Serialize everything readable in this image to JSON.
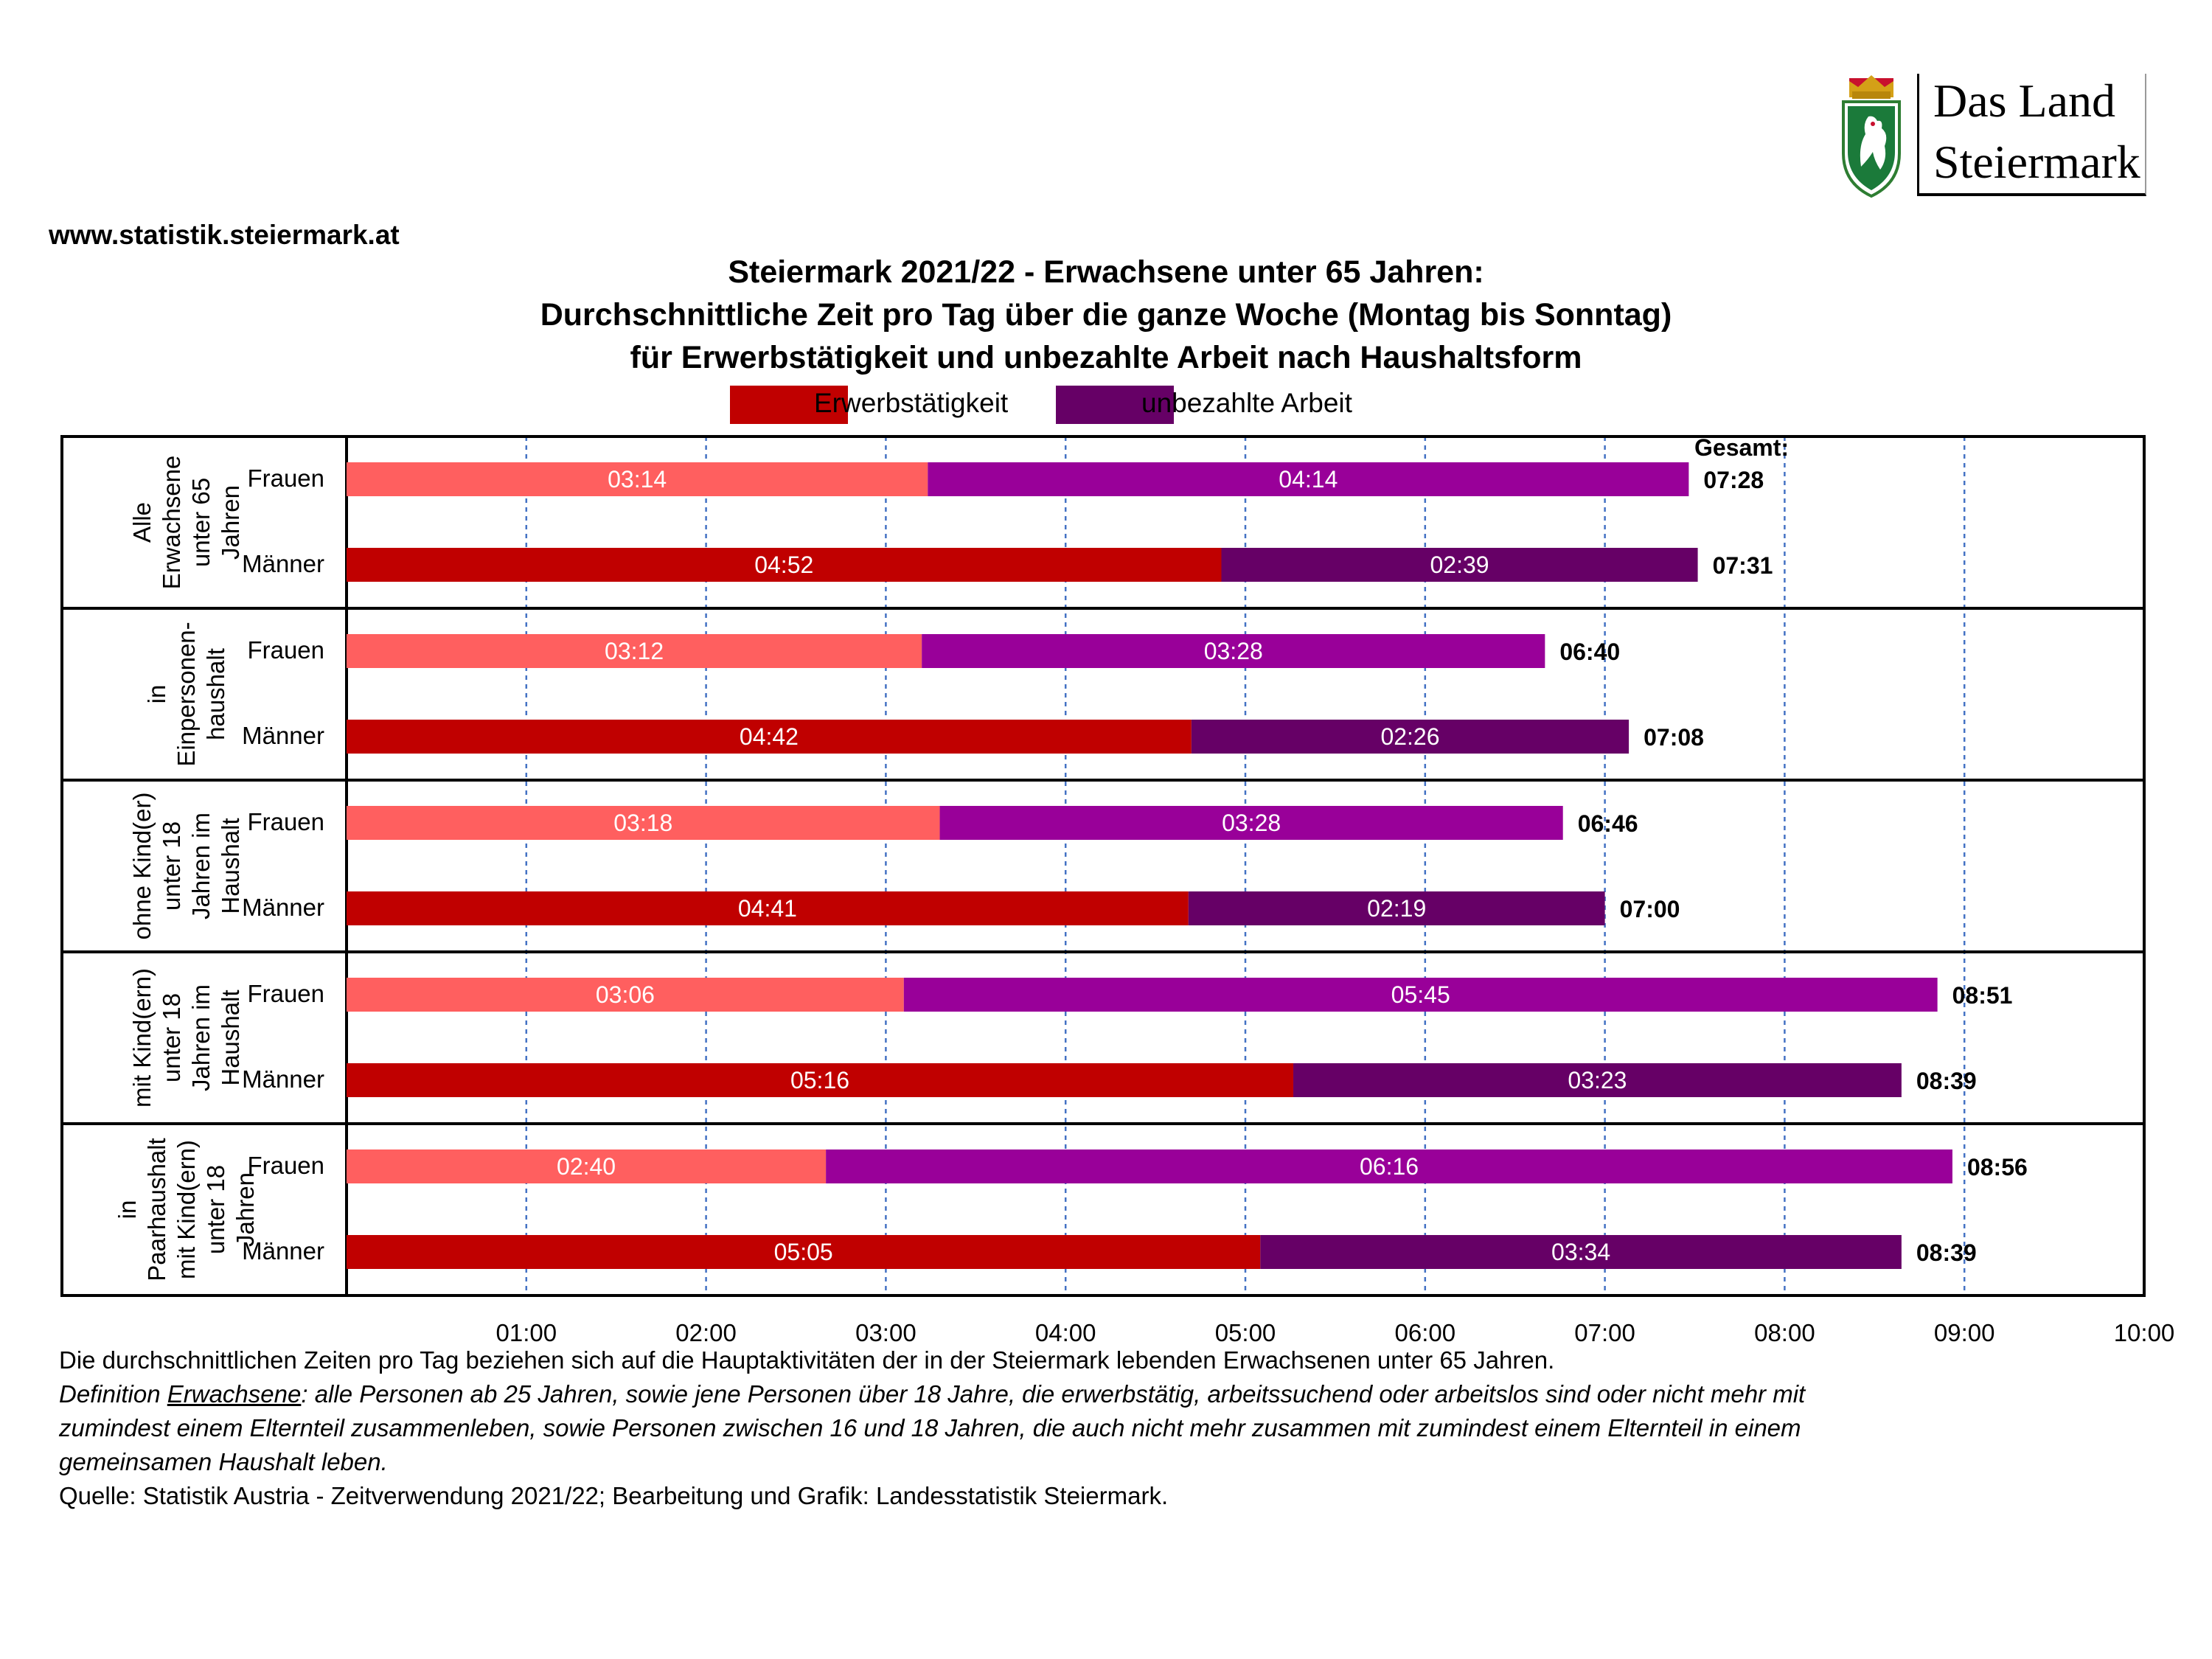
{
  "logo": {
    "line1": "Das Land",
    "line2": "Steiermark"
  },
  "website": "www.statistik.steiermark.at",
  "title_lines": [
    "Steiermark 2021/22 - Erwachsene unter 65 Jahren:",
    "Durchschnittliche Zeit pro Tag über die ganze Woche (Montag bis Sonntag)",
    "für Erwerbstätigkeit und unbezahlte Arbeit nach Haushaltsform"
  ],
  "legend": [
    {
      "label": "Erwerbstätigkeit",
      "color": "#C00000"
    },
    {
      "label": "unbezahlte Arbeit",
      "color": "#660066"
    }
  ],
  "chart_data": {
    "type": "bar",
    "orientation": "horizontal",
    "stacked": true,
    "x_unit": "hh:mm",
    "xlim": [
      "00:00",
      "10:00"
    ],
    "x_ticks": [
      "01:00",
      "02:00",
      "03:00",
      "04:00",
      "05:00",
      "06:00",
      "07:00",
      "08:00",
      "09:00",
      "10:00"
    ],
    "grid": "vertical dashed",
    "total_header": "Gesamt:",
    "series": [
      {
        "name": "Erwerbstätigkeit",
        "colors": {
          "Frauen": "#FF5F5F",
          "Männer": "#C00000"
        }
      },
      {
        "name": "unbezahlte Arbeit",
        "colors": {
          "Frauen": "#990099",
          "Männer": "#660066"
        }
      }
    ],
    "groups": [
      {
        "label": [
          "Alle",
          "Erwachsene",
          "unter 65",
          "Jahren"
        ],
        "rows": [
          {
            "label": "Frauen",
            "values": [
              "03:14",
              "04:14"
            ],
            "total": "07:28"
          },
          {
            "label": "Männer",
            "values": [
              "04:52",
              "02:39"
            ],
            "total": "07:31"
          }
        ]
      },
      {
        "label": [
          "in",
          "Einpersonen-",
          "haushalt"
        ],
        "rows": [
          {
            "label": "Frauen",
            "values": [
              "03:12",
              "03:28"
            ],
            "total": "06:40"
          },
          {
            "label": "Männer",
            "values": [
              "04:42",
              "02:26"
            ],
            "total": "07:08"
          }
        ]
      },
      {
        "label": [
          "ohne Kind(er)",
          "unter 18",
          "Jahren im",
          "Haushalt"
        ],
        "rows": [
          {
            "label": "Frauen",
            "values": [
              "03:18",
              "03:28"
            ],
            "total": "06:46"
          },
          {
            "label": "Männer",
            "values": [
              "04:41",
              "02:19"
            ],
            "total": "07:00"
          }
        ]
      },
      {
        "label": [
          "mit Kind(ern)",
          "unter 18",
          "Jahren im",
          "Haushalt"
        ],
        "rows": [
          {
            "label": "Frauen",
            "values": [
              "03:06",
              "05:45"
            ],
            "total": "08:51"
          },
          {
            "label": "Männer",
            "values": [
              "05:16",
              "03:23"
            ],
            "total": "08:39"
          }
        ]
      },
      {
        "label": [
          "in",
          "Paarhaushalt",
          "mit Kind(ern)",
          "unter 18",
          "Jahren"
        ],
        "rows": [
          {
            "label": "Frauen",
            "values": [
              "02:40",
              "06:16"
            ],
            "total": "08:56"
          },
          {
            "label": "Männer",
            "values": [
              "05:05",
              "03:34"
            ],
            "total": "08:39"
          }
        ]
      }
    ]
  },
  "footnotes": {
    "line1": "Die durchschnittlichen Zeiten pro Tag beziehen sich auf die Hauptaktivitäten der in der Steiermark lebenden Erwachsenen unter 65 Jahren.",
    "definition_prefix": "Definition ",
    "definition_term": "Erwachsene",
    "definition_rest": ": alle Personen ab 25 Jahren, sowie jene Personen über 18 Jahre, die erwerbstätig, arbeitssuchend oder arbeitslos sind oder nicht mehr mit",
    "line3": "zumindest einem Elternteil zusammenleben, sowie Personen zwischen 16 und 18 Jahren, die auch nicht mehr zusammen mit zumindest einem Elternteil in einem",
    "line4": "gemeinsamen Haushalt leben.",
    "source": "Quelle: Statistik Austria - Zeitverwendung 2021/22; Bearbeitung und Grafik: Landesstatistik Steiermark."
  }
}
